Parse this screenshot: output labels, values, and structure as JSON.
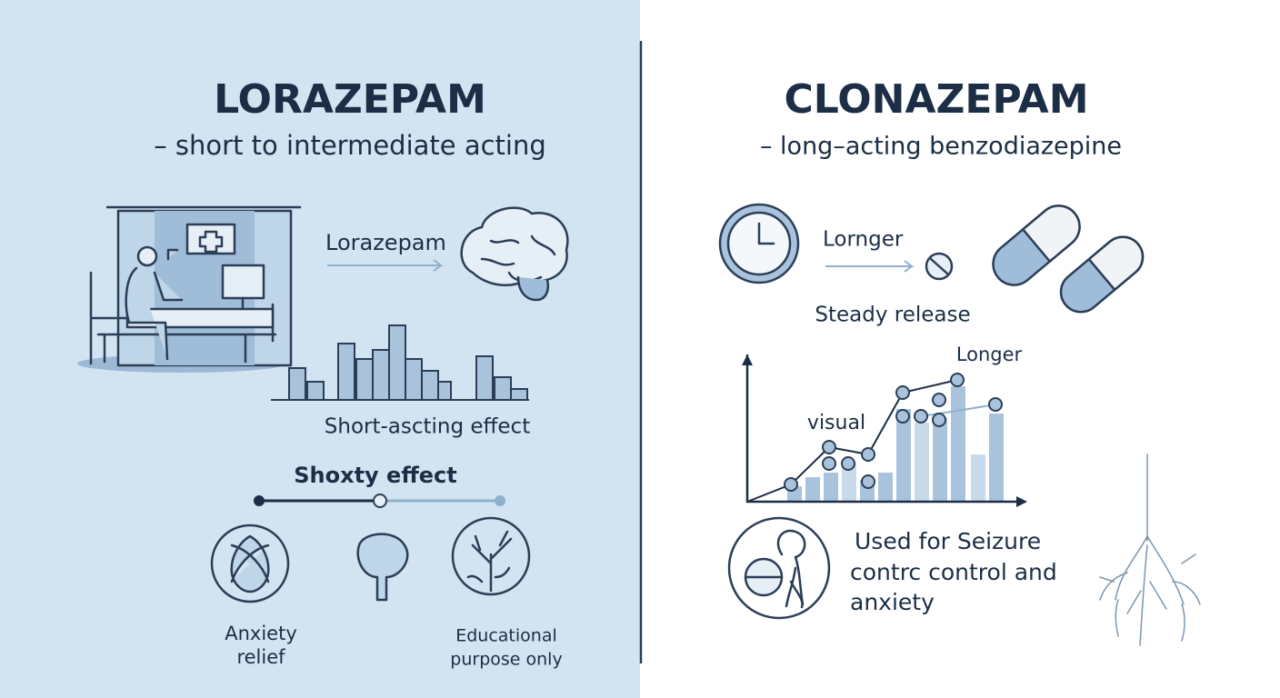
{
  "left": {
    "title": "LORAZEPAM",
    "subtitle": "– short to intermediate acting",
    "arrow_label": "Lorazepam",
    "chart_caption": "Short-ascting effect",
    "effect_label": "Shoxty effect",
    "icons": [
      {
        "label": [
          "Anxiety",
          "relief"
        ]
      },
      {
        "label": [
          "Educational",
          "purpose only"
        ]
      }
    ]
  },
  "right": {
    "title": "CLONAZEPAM",
    "subtitle": "– long–acting benzodiazepine",
    "arrow_label": "Lornger",
    "release_label": "Steady release",
    "chart_top_label": "Longer",
    "chart_side_label": "visual",
    "use_text": [
      "Used for Seizure",
      "contrc control and",
      "anxiety"
    ]
  }
}
